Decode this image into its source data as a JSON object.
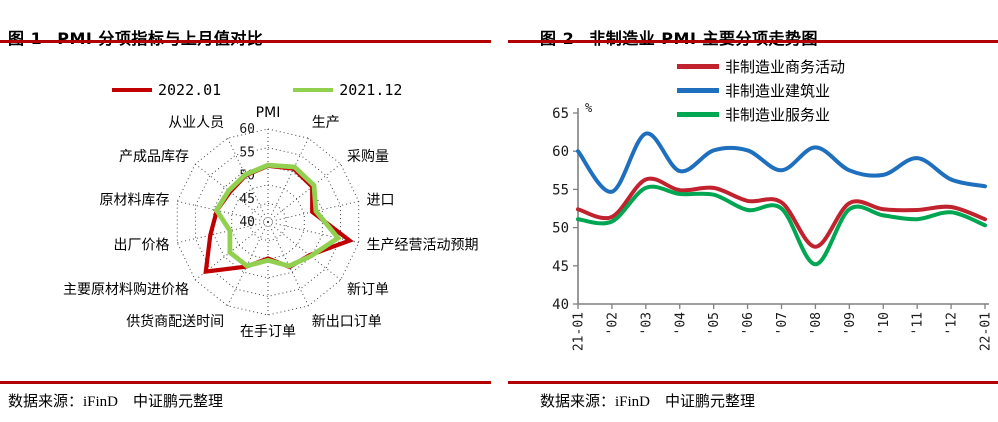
{
  "page": {
    "left": {
      "figure_label": "图 1",
      "title": "PMI 分项指标与上月值对比",
      "source": "数据来源：iFinD　中证鹏元整理"
    },
    "right": {
      "figure_label": "图 2",
      "title": "非制造业 PMI 主要分项走势图",
      "source": "数据来源：iFinD　中证鹏元整理"
    }
  },
  "colors": {
    "rule_red": "#b00000",
    "grid_dots": "#404040",
    "axis_gray": "#808080",
    "label_text": "#1a1a1a"
  },
  "chart_data": [
    {
      "type": "radar",
      "title": "PMI 分项指标与上月值对比",
      "legend_position": "top",
      "categories": [
        "PMI",
        "生产",
        "采购量",
        "进口",
        "生产经营活动预期",
        "新订单",
        "新出口订单",
        "在手订单",
        "供货商配送时间",
        "主要原材料购进价格",
        "出厂价格",
        "原材料库存",
        "产成品库存",
        "从业人员"
      ],
      "series": [
        {
          "name": "2022.01",
          "color": "#c00000",
          "values": [
            50.1,
            50.9,
            50.2,
            47.2,
            57.5,
            49.3,
            48.4,
            44.8,
            48.3,
            56.4,
            50.9,
            49.1,
            48.0,
            48.9
          ]
        },
        {
          "name": "2021.12",
          "color": "#92d050",
          "values": [
            50.3,
            51.4,
            50.8,
            48.2,
            54.3,
            49.7,
            48.1,
            45.3,
            48.1,
            48.1,
            45.5,
            49.2,
            48.5,
            49.1
          ]
        }
      ],
      "r_min": 35,
      "r_max": 60,
      "r_ticks": [
        40,
        45,
        50,
        55,
        60
      ]
    },
    {
      "type": "line",
      "title": "非制造业 PMI 主要分项走势图",
      "legend_position": "top",
      "xlabel": "",
      "ylabel": "%",
      "categories": [
        "21-01",
        "'02",
        "'03",
        "'04",
        "'05",
        "'06",
        "'07",
        "'08",
        "'09",
        "'10",
        "'11",
        "'12",
        "22-01"
      ],
      "series": [
        {
          "name": "非制造业商务活动",
          "color": "#c0222e",
          "values": [
            52.4,
            51.4,
            56.3,
            54.9,
            55.2,
            53.5,
            53.3,
            47.5,
            53.2,
            52.4,
            52.3,
            52.7,
            51.1
          ]
        },
        {
          "name": "非制造业建筑业",
          "color": "#1f6fbf",
          "values": [
            60.0,
            54.7,
            62.3,
            57.4,
            60.1,
            60.1,
            57.5,
            60.5,
            57.5,
            56.9,
            59.1,
            56.3,
            55.4
          ]
        },
        {
          "name": "非制造业服务业",
          "color": "#00a651",
          "values": [
            51.1,
            50.8,
            55.2,
            54.4,
            54.3,
            52.3,
            52.5,
            45.2,
            52.4,
            51.6,
            51.1,
            52.0,
            50.3
          ]
        }
      ],
      "ylim": [
        40,
        65
      ],
      "yticks": [
        40,
        45,
        50,
        55,
        60,
        65
      ],
      "grid": false
    }
  ]
}
